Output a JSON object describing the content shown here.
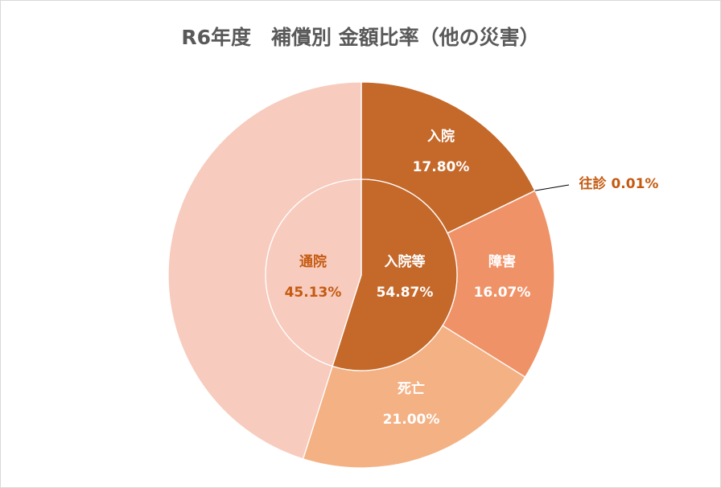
{
  "chart_data": {
    "type": "pie",
    "title": "R6年度　補償別 金額比率（他の災害）",
    "inner": [
      {
        "label": "入院等",
        "value": 54.87,
        "display": "54.87%",
        "color": "#C5692B"
      },
      {
        "label": "通院",
        "value": 45.13,
        "display": "45.13%",
        "color": "#F7CBBD"
      }
    ],
    "outer": [
      {
        "label": "入院",
        "value": 17.8,
        "display": "17.80%",
        "color": "#C5692B"
      },
      {
        "label": "往診",
        "value": 0.01,
        "display": "0.01%",
        "color": "#C5692B"
      },
      {
        "label": "障害",
        "value": 16.07,
        "display": "16.07%",
        "color": "#F09268"
      },
      {
        "label": "死亡",
        "value": 21.0,
        "display": "21.00%",
        "color": "#F4B184"
      },
      {
        "label": "通院",
        "value": 45.13,
        "display": "",
        "color": "#F7CBBD"
      }
    ]
  }
}
